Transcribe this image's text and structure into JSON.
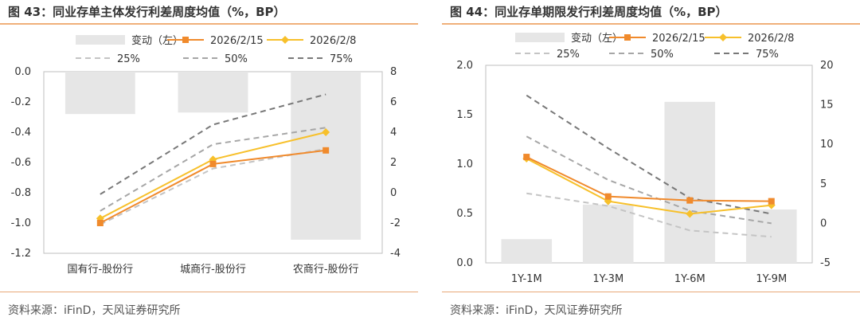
{
  "colors": {
    "bar": "#e6e6e6",
    "s_2026_2_15": "#f08a2c",
    "s_2026_2_8": "#f7c02b",
    "p25": "#c4c4c4",
    "p50": "#a6a6a6",
    "p75": "#787878",
    "rule": "#f0b07a"
  },
  "chart_data": [
    {
      "title": "图 43：同业存单主体发行利差周度均值（%，BP）",
      "type": "bar",
      "categories": [
        "国有行-股份行",
        "城商行-股份行",
        "农商行-股份行"
      ],
      "y_left": {
        "min": -1.2,
        "max": 0.0,
        "ticks": [
          "0.0",
          "-0.2",
          "-0.4",
          "-0.6",
          "-0.8",
          "-1.0",
          "-1.2"
        ]
      },
      "y_right": {
        "min": -4,
        "max": 8,
        "ticks": [
          "8",
          "6",
          "4",
          "2",
          "0",
          "-2",
          "-4"
        ]
      },
      "legend": {
        "bar": "变动（左）",
        "s1": "2026/2/15",
        "s2": "2026/2/8",
        "p25": "25%",
        "p50": "50%",
        "p75": "75%"
      },
      "series": [
        {
          "name": "变动（左）",
          "kind": "bar",
          "axis": "left",
          "values": [
            -0.28,
            -0.27,
            -1.11
          ]
        },
        {
          "name": "2026/2/15",
          "kind": "line",
          "axis": "right",
          "values": [
            -2.0,
            1.9,
            2.8
          ]
        },
        {
          "name": "2026/2/8",
          "kind": "line",
          "axis": "right",
          "values": [
            -1.7,
            2.2,
            4.0
          ]
        },
        {
          "name": "25%",
          "kind": "dash",
          "axis": "right",
          "values": [
            -2.1,
            1.6,
            2.9
          ]
        },
        {
          "name": "50%",
          "kind": "dash",
          "axis": "right",
          "values": [
            -1.2,
            3.2,
            4.3
          ]
        },
        {
          "name": "75%",
          "kind": "dash",
          "axis": "right",
          "values": [
            -0.1,
            4.5,
            6.5
          ]
        }
      ],
      "source": "资料来源：iFinD，天风证券研究所"
    },
    {
      "title": "图 44：同业存单期限发行利差周度均值（%，BP）",
      "type": "bar",
      "categories": [
        "1Y-1M",
        "1Y-3M",
        "1Y-6M",
        "1Y-9M"
      ],
      "y_left": {
        "min": 0.0,
        "max": 2.0,
        "ticks": [
          "2.0",
          "1.5",
          "1.0",
          "0.5",
          "0.0"
        ]
      },
      "y_right": {
        "min": -5,
        "max": 20,
        "ticks": [
          "20",
          "15",
          "10",
          "5",
          "0",
          "-5"
        ]
      },
      "legend": {
        "bar": "变动（左）",
        "s1": "2026/2/15",
        "s2": "2026/2/8",
        "p25": "25%",
        "p50": "50%",
        "p75": "75%"
      },
      "series": [
        {
          "name": "变动（左）",
          "kind": "bar",
          "axis": "left",
          "values": [
            0.24,
            0.59,
            1.63,
            0.54
          ]
        },
        {
          "name": "2026/2/15",
          "kind": "line",
          "axis": "right",
          "values": [
            8.4,
            3.4,
            2.9,
            2.8
          ]
        },
        {
          "name": "2026/2/8",
          "kind": "line",
          "axis": "right",
          "values": [
            8.2,
            2.8,
            1.2,
            2.3
          ]
        },
        {
          "name": "25%",
          "kind": "dash",
          "axis": "right",
          "values": [
            3.8,
            2.2,
            -0.9,
            -1.7
          ]
        },
        {
          "name": "50%",
          "kind": "dash",
          "axis": "right",
          "values": [
            11.0,
            5.5,
            1.6,
            0.0
          ]
        },
        {
          "name": "75%",
          "kind": "dash",
          "axis": "right",
          "values": [
            16.2,
            9.5,
            3.2,
            1.2
          ]
        }
      ],
      "source": "资料来源：iFinD，天风证券研究所"
    }
  ]
}
